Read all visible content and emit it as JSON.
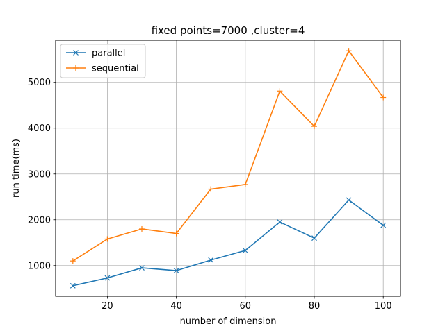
{
  "chart_data": {
    "type": "line",
    "title": "fixed points=7000 ,cluster=4",
    "xlabel": "number of dimension",
    "ylabel": "run time(ms)",
    "x": [
      10,
      20,
      30,
      40,
      50,
      60,
      70,
      80,
      90,
      100
    ],
    "xlim": [
      5,
      105
    ],
    "ylim": [
      330,
      5920
    ],
    "xticks": [
      20,
      40,
      60,
      80,
      100
    ],
    "yticks": [
      1000,
      2000,
      3000,
      4000,
      5000
    ],
    "grid": true,
    "legend": "top-left",
    "series": [
      {
        "name": "parallel",
        "color": "#1f77b4",
        "marker": "x",
        "values": [
          560,
          730,
          950,
          890,
          1120,
          1330,
          1950,
          1600,
          2430,
          1880
        ]
      },
      {
        "name": "sequential",
        "color": "#ff7f0e",
        "marker": "plus",
        "values": [
          1100,
          1580,
          1800,
          1700,
          2670,
          2770,
          4810,
          4040,
          5690,
          4670
        ]
      }
    ]
  }
}
